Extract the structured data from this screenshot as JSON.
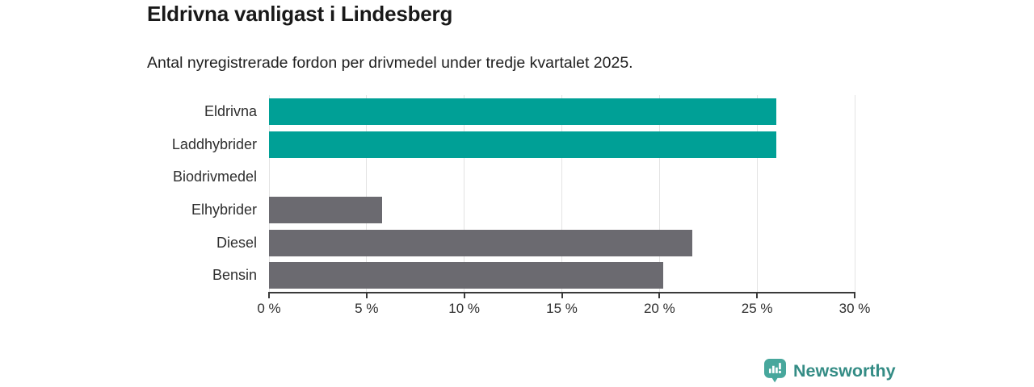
{
  "title": "Eldrivna vanligast i Lindesberg",
  "subtitle": "Antal nyregistrerade fordon per drivmedel under tredje kvartalet 2025.",
  "chart_data": {
    "type": "bar",
    "orientation": "horizontal",
    "title": "Eldrivna vanligast i Lindesberg",
    "subtitle": "Antal nyregistrerade fordon per drivmedel under tredje kvartalet 2025.",
    "categories": [
      "Eldrivna",
      "Laddhybrider",
      "Biodrivmedel",
      "Elhybrider",
      "Diesel",
      "Bensin"
    ],
    "values": [
      26,
      26,
      0,
      5.8,
      21.7,
      20.2
    ],
    "unit": "%",
    "xlim": [
      0,
      30
    ],
    "x_ticks": [
      0,
      5,
      10,
      15,
      20,
      25,
      30
    ],
    "x_tick_labels": [
      "0 %",
      "5 %",
      "10 %",
      "15 %",
      "20 %",
      "25 %",
      "30 %"
    ],
    "bar_colors": [
      "#00a096",
      "#00a096",
      "#6b6a70",
      "#6b6a70",
      "#6b6a70",
      "#6b6a70"
    ],
    "highlight_color": "#00a096",
    "default_color": "#6b6a70",
    "grid": true,
    "gridline_color": "#e3e3e3",
    "axis_color": "#3a3a3a",
    "legend": "none"
  },
  "footer": {
    "brand": "Newsworthy",
    "brand_text_color": "#348c85",
    "brand_icon": "bar-chart-speech-bubble-icon",
    "brand_icon_color": "#47a79c"
  }
}
